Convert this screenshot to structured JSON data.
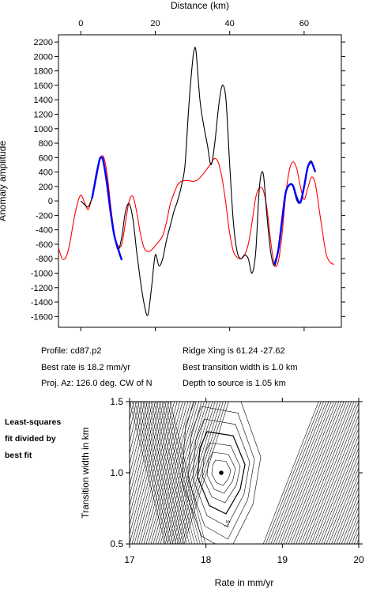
{
  "info": {
    "profile": "Profile: cd87.p2",
    "best_rate": "Best rate is 18.2 mm/yr",
    "proj_az": "Proj. Az: 126.0 deg. CW of N",
    "ridge_xing": "Ridge Xing is 61.24 -27.62",
    "best_width": "Best transition width is 1.0 km",
    "depth": "Depth to source is   1.05 km"
  },
  "side_note": {
    "line1": "Least-squares",
    "line2": "fit divided by",
    "line3": "best fit"
  },
  "colors": {
    "observed": "#000000",
    "model": "#ff0000",
    "fit_window": "#0000ff",
    "contour": "#000000"
  },
  "chart_data": [
    {
      "type": "line",
      "title": "",
      "xlabel": "Distance (km)",
      "ylabel": "Anomaly amplitude",
      "xlim": [
        -6,
        70
      ],
      "ylim": [
        -1750,
        2300
      ],
      "xticks": [
        0,
        20,
        40,
        60
      ],
      "yticks": [
        -1600,
        -1400,
        -1200,
        -1000,
        -800,
        -600,
        -400,
        -200,
        0,
        200,
        400,
        600,
        800,
        1000,
        1200,
        1400,
        1600,
        1800,
        2000,
        2200
      ],
      "series": [
        {
          "name": "",
          "color": "#000000",
          "x": [
            0,
            1,
            2,
            3,
            4,
            5,
            5.5,
            6,
            7,
            8,
            9,
            10,
            11,
            12,
            13,
            14,
            15,
            16,
            17,
            18,
            19,
            20,
            21,
            22,
            23,
            24,
            25,
            26,
            27,
            28,
            29,
            30,
            30.5,
            31,
            32,
            33,
            34,
            35,
            36,
            37,
            38,
            39,
            40,
            41,
            42,
            43,
            44,
            45,
            46,
            47,
            48,
            49,
            50,
            51,
            52,
            53,
            54,
            55,
            56,
            57,
            58,
            59,
            60,
            61,
            62,
            63
          ],
          "y": [
            0,
            -50,
            -80,
            50,
            350,
            580,
            610,
            560,
            300,
            -100,
            -450,
            -680,
            -500,
            -150,
            -40,
            -250,
            -700,
            -1100,
            -1420,
            -1580,
            -1200,
            -750,
            -900,
            -800,
            -550,
            -350,
            -150,
            0,
            200,
            500,
            1300,
            1920,
            2100,
            2050,
            1400,
            1050,
            780,
            500,
            800,
            1300,
            1600,
            1400,
            500,
            -300,
            -700,
            -800,
            -750,
            -800,
            -1000,
            -700,
            200,
            380,
            -200,
            -700,
            -900,
            -700,
            -300,
            100,
            230,
            200,
            10,
            -20,
            200,
            480,
            550,
            400
          ]
        },
        {
          "name": "",
          "color": "#ff0000",
          "x": [
            -6,
            -5,
            -4,
            -3,
            -2,
            -1,
            0,
            1,
            2,
            3,
            4,
            5,
            6,
            7,
            8,
            9,
            10,
            11,
            12,
            13,
            14,
            15,
            16,
            17,
            18,
            19,
            20,
            21,
            22,
            23,
            24,
            25,
            26,
            27,
            28,
            29,
            30,
            31,
            32,
            33,
            34,
            35,
            36,
            37,
            38,
            39,
            40,
            41,
            42,
            43,
            44,
            45,
            46,
            47,
            48,
            49,
            50,
            51,
            52,
            53,
            54,
            55,
            56,
            57,
            58,
            59,
            60,
            61,
            62,
            63,
            64,
            65,
            66,
            67,
            68
          ],
          "y": [
            -650,
            -800,
            -780,
            -600,
            -300,
            -50,
            80,
            -20,
            -120,
            50,
            300,
            550,
            620,
            400,
            -50,
            -450,
            -620,
            -600,
            -300,
            0,
            60,
            -150,
            -450,
            -650,
            -700,
            -680,
            -620,
            -560,
            -480,
            -300,
            -50,
            100,
            220,
            270,
            280,
            280,
            270,
            280,
            320,
            380,
            450,
            520,
            590,
            520,
            300,
            -50,
            -450,
            -700,
            -780,
            -800,
            -750,
            -600,
            -300,
            50,
            180,
            150,
            -100,
            -550,
            -880,
            -850,
            -500,
            50,
            420,
            540,
            450,
            200,
            20,
            180,
            330,
            240,
            -100,
            -450,
            -750,
            -850,
            -880
          ]
        },
        {
          "name": "",
          "color": "#0000ff",
          "x": [
            3,
            4,
            5,
            5.5,
            6,
            7,
            8,
            9,
            10,
            11
          ],
          "y": [
            30,
            300,
            560,
            600,
            560,
            250,
            -150,
            -480,
            -660,
            -820
          ]
        },
        {
          "name": "",
          "color": "#0000ff",
          "x": [
            52,
            53,
            54,
            55,
            56,
            57,
            58,
            59,
            60,
            61,
            62,
            63
          ],
          "y": [
            -880,
            -700,
            -300,
            100,
            220,
            210,
            50,
            -20,
            200,
            470,
            530,
            400
          ]
        }
      ]
    },
    {
      "type": "contour",
      "title": "",
      "xlabel": "Rate in mm/yr",
      "ylabel": "Transition width in km",
      "xlim": [
        17,
        20
      ],
      "ylim": [
        0.5,
        1.5
      ],
      "xticks": [
        17,
        18,
        19,
        20
      ],
      "yticks": [
        0.5,
        1.0,
        1.5
      ],
      "best_fit": {
        "x": 18.2,
        "y": 1.0
      },
      "contour_label": "1.5"
    }
  ]
}
